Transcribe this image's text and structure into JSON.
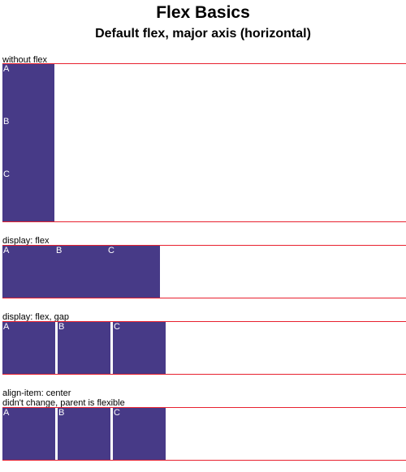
{
  "page": {
    "title": "Flex Basics",
    "subtitle": "Default flex, major axis (horizontal)"
  },
  "sections": [
    {
      "label": "without flex",
      "items": [
        "A",
        "B",
        "C"
      ]
    },
    {
      "label": "display: flex",
      "items": [
        "A",
        "B",
        "C"
      ]
    },
    {
      "label": "display: flex, gap",
      "items": [
        "A",
        "B",
        "C"
      ]
    },
    {
      "label": "align-item: center",
      "note": "didn't change, parent is flexible",
      "items": [
        "A",
        "B",
        "C"
      ]
    }
  ],
  "colors": {
    "box": "#473a87",
    "border": "#e8212f",
    "text_on_box": "#ffffff"
  }
}
